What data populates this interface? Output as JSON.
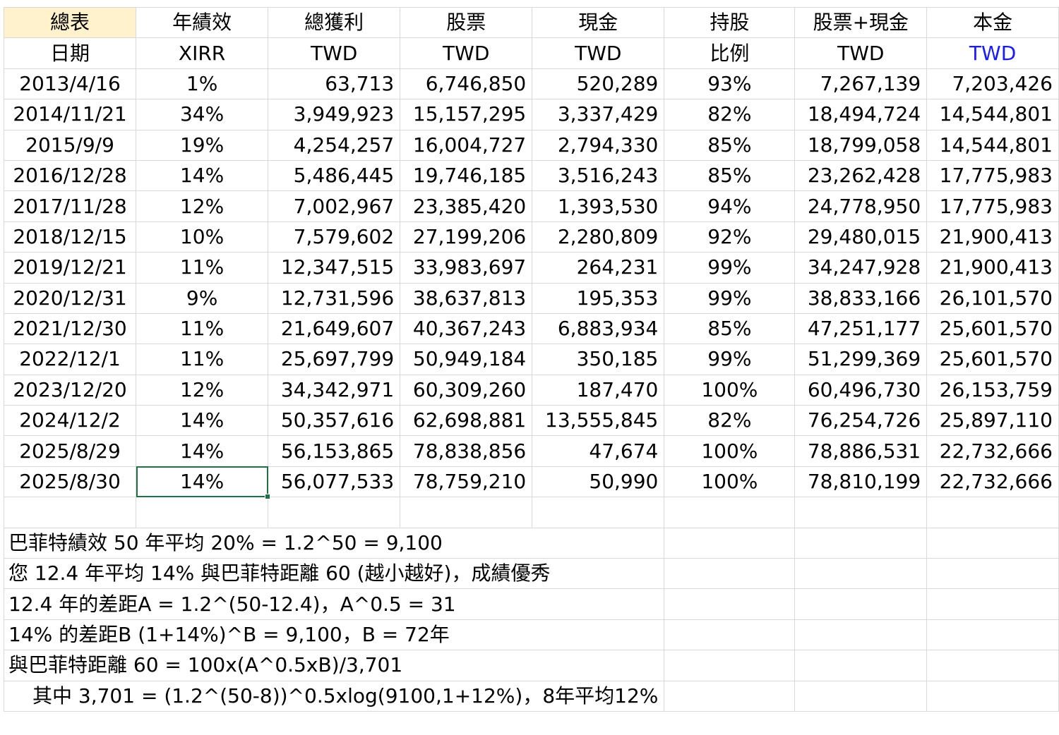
{
  "header_row1": [
    "總表",
    "年績效",
    "總獲利",
    "股票",
    "現金",
    "持股",
    "股票+現金",
    "本金"
  ],
  "header_row2": [
    "日期",
    "XIRR",
    "TWD",
    "TWD",
    "TWD",
    "比例",
    "TWD",
    "TWD"
  ],
  "rows": [
    [
      "2013/4/16",
      "1%",
      "63,713",
      "6,746,850",
      "520,289",
      "93%",
      "7,267,139",
      "7,203,426"
    ],
    [
      "2014/11/21",
      "34%",
      "3,949,923",
      "15,157,295",
      "3,337,429",
      "82%",
      "18,494,724",
      "14,544,801"
    ],
    [
      "2015/9/9",
      "19%",
      "4,254,257",
      "16,004,727",
      "2,794,330",
      "85%",
      "18,799,058",
      "14,544,801"
    ],
    [
      "2016/12/28",
      "14%",
      "5,486,445",
      "19,746,185",
      "3,516,243",
      "85%",
      "23,262,428",
      "17,775,983"
    ],
    [
      "2017/11/28",
      "12%",
      "7,002,967",
      "23,385,420",
      "1,393,530",
      "94%",
      "24,778,950",
      "17,775,983"
    ],
    [
      "2018/12/15",
      "10%",
      "7,579,602",
      "27,199,206",
      "2,280,809",
      "92%",
      "29,480,015",
      "21,900,413"
    ],
    [
      "2019/12/21",
      "11%",
      "12,347,515",
      "33,983,697",
      "264,231",
      "99%",
      "34,247,928",
      "21,900,413"
    ],
    [
      "2020/12/31",
      "9%",
      "12,731,596",
      "38,637,813",
      "195,353",
      "99%",
      "38,833,166",
      "26,101,570"
    ],
    [
      "2021/12/30",
      "11%",
      "21,649,607",
      "40,367,243",
      "6,883,934",
      "85%",
      "47,251,177",
      "25,601,570"
    ],
    [
      "2022/12/1",
      "11%",
      "25,697,799",
      "50,949,184",
      "350,185",
      "99%",
      "51,299,369",
      "25,601,570"
    ],
    [
      "2023/12/20",
      "12%",
      "34,342,971",
      "60,309,260",
      "187,470",
      "100%",
      "60,496,730",
      "26,153,759"
    ],
    [
      "2024/12/2",
      "14%",
      "50,357,616",
      "62,698,881",
      "13,555,845",
      "82%",
      "76,254,726",
      "25,897,110"
    ],
    [
      "2025/8/29",
      "14%",
      "56,153,865",
      "78,838,856",
      "47,674",
      "100%",
      "78,886,531",
      "22,732,666"
    ],
    [
      "2025/8/30",
      "14%",
      "56,077,533",
      "78,759,210",
      "50,990",
      "100%",
      "78,810,199",
      "22,732,666"
    ]
  ],
  "notes": [
    "巴菲特績效 50 年平均 20% = 1.2^50 = 9,100",
    "您 12.4 年平均 14% 與巴菲特距離 60 (越小越好)，成績優秀",
    "12.4 年的差距A = 1.2^(50-12.4)，A^0.5 = 31",
    "14% 的差距B (1+14%)^B = 9,100，B = 72年",
    "與巴菲特距離 60 = 100x(A^0.5xB)/3,701",
    "其中 3,701 = (1.2^(50-8))^0.5xlog(9100,1+12%)，8年平均12%"
  ],
  "colors": {
    "header_highlight": "#fff2cc",
    "twd_blue": "#1a1aff",
    "selection": "#1e7145",
    "gridline": "#d9d9d9"
  }
}
